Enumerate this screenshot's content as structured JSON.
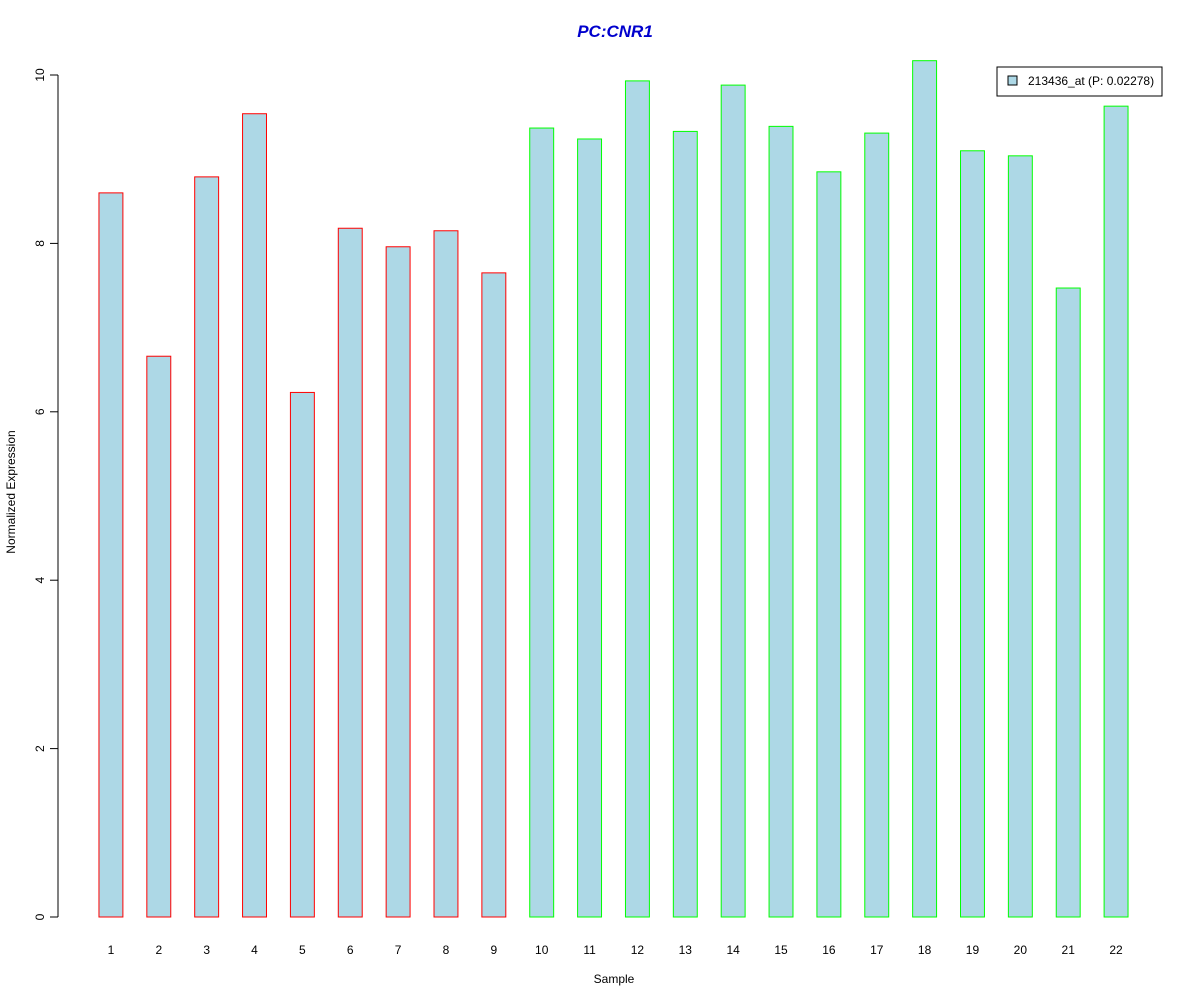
{
  "chart_data": {
    "type": "bar",
    "title": "PC:CNR1",
    "xlabel": "Sample",
    "ylabel": "Normalized Expression",
    "categories": [
      "1",
      "2",
      "3",
      "4",
      "5",
      "6",
      "7",
      "8",
      "9",
      "10",
      "11",
      "12",
      "13",
      "14",
      "15",
      "16",
      "17",
      "18",
      "19",
      "20",
      "21",
      "22"
    ],
    "values": [
      8.6,
      6.66,
      8.79,
      9.54,
      6.23,
      8.18,
      7.96,
      8.15,
      7.65,
      9.37,
      9.24,
      9.93,
      9.33,
      9.88,
      9.39,
      8.85,
      9.31,
      10.17,
      9.1,
      9.04,
      7.47,
      9.63
    ],
    "groups": [
      "red",
      "red",
      "red",
      "red",
      "red",
      "red",
      "red",
      "red",
      "red",
      "green",
      "green",
      "green",
      "green",
      "green",
      "green",
      "green",
      "green",
      "green",
      "green",
      "green",
      "green",
      "green"
    ],
    "ylim": [
      0,
      10
    ],
    "yticks": [
      0,
      2,
      4,
      6,
      8,
      10
    ],
    "grid": false,
    "legend": {
      "position": "top-right",
      "entries": [
        {
          "label": "213436_at (P: 0.02278)",
          "color": "#add8e6"
        }
      ]
    },
    "colors": {
      "fill": "#add8e6",
      "border_group_red": "#ff0000",
      "border_group_green": "#00ff00",
      "title": "#0000cd"
    }
  }
}
